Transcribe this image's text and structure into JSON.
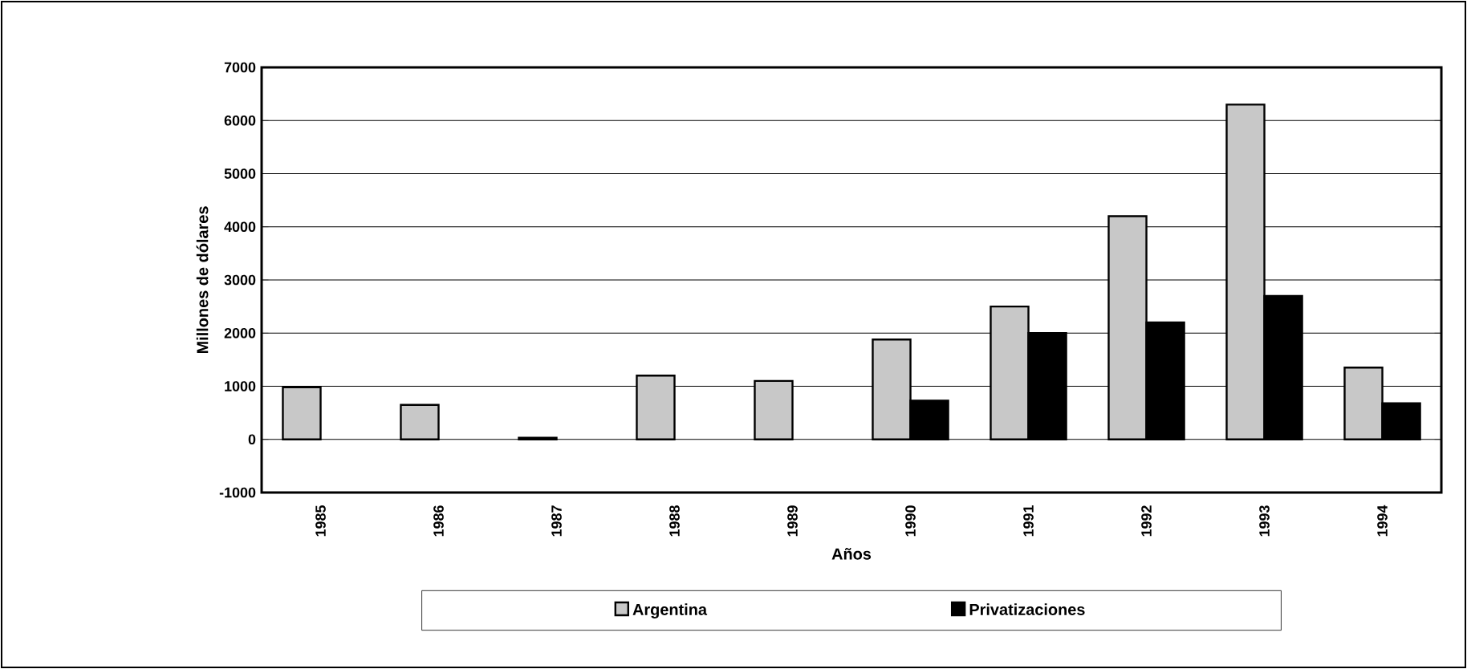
{
  "chart_data": {
    "type": "bar",
    "xlabel": "Años",
    "ylabel": "Millones de dólares",
    "categories": [
      "1985",
      "1986",
      "1987",
      "1988",
      "1989",
      "1990",
      "1991",
      "1992",
      "1993",
      "1994"
    ],
    "series": [
      {
        "name": "Argentina",
        "color": "#c8c8c8",
        "values": [
          980,
          650,
          30,
          1200,
          1100,
          1880,
          2500,
          4200,
          6300,
          1350
        ]
      },
      {
        "name": "Privatizaciones",
        "color": "#000000",
        "values": [
          null,
          null,
          null,
          null,
          null,
          730,
          2000,
          2200,
          2700,
          680
        ]
      }
    ],
    "ylim": [
      -1000,
      7000
    ],
    "yticks": [
      -1000,
      0,
      1000,
      2000,
      3000,
      4000,
      5000,
      6000,
      7000
    ],
    "grid": "y",
    "legend": "bottom"
  }
}
